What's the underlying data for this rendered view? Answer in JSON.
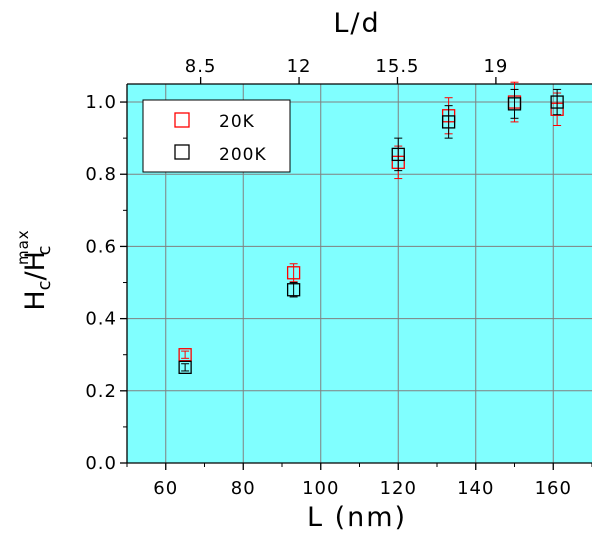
{
  "chart_data": {
    "type": "scatter",
    "title": "",
    "xlabel": "L (nm)",
    "top_xlabel": "L/d",
    "ylabel": {
      "main": "H",
      "sub1": "c",
      "slash": "/H",
      "sup": "max",
      "sub2": "c"
    },
    "xlim": [
      50,
      170
    ],
    "ylim": [
      0.0,
      1.05
    ],
    "x_ticks": [
      60,
      80,
      100,
      120,
      140,
      160
    ],
    "x_tick_labels": [
      "60",
      "80",
      "100",
      "120",
      "140",
      "160"
    ],
    "y_ticks": [
      0.0,
      0.2,
      0.4,
      0.6,
      0.8,
      1.0
    ],
    "y_tick_labels": [
      "0.0",
      "0.2",
      "0.4",
      "0.6",
      "0.8",
      "1.0"
    ],
    "top_ticks": [
      {
        "label": "8.5",
        "x": 69
      },
      {
        "label": "12",
        "x": 94.4
      },
      {
        "label": "15.5",
        "x": 119.8
      },
      {
        "label": "19",
        "x": 145.2
      }
    ],
    "grid": true,
    "legend_position": "top-left",
    "plot_background": "#80ffff",
    "series": [
      {
        "name": "20K",
        "color": "#ff0000",
        "points": [
          {
            "x": 65,
            "y": 0.3,
            "err": 0.01
          },
          {
            "x": 93,
            "y": 0.527,
            "err": 0.025
          },
          {
            "x": 120,
            "y": 0.833,
            "err": 0.045
          },
          {
            "x": 133,
            "y": 0.962,
            "err": 0.05
          },
          {
            "x": 150,
            "y": 1.0,
            "err": 0.055
          },
          {
            "x": 161,
            "y": 0.98,
            "err": 0.045
          }
        ]
      },
      {
        "name": "200K",
        "color": "#000000",
        "points": [
          {
            "x": 65,
            "y": 0.265,
            "err": 0.01
          },
          {
            "x": 93,
            "y": 0.48,
            "err": 0.02
          },
          {
            "x": 120,
            "y": 0.855,
            "err": 0.045
          },
          {
            "x": 133,
            "y": 0.945,
            "err": 0.045
          },
          {
            "x": 150,
            "y": 0.995,
            "err": 0.04
          },
          {
            "x": 161,
            "y": 1.0,
            "err": 0.035
          }
        ]
      }
    ]
  }
}
